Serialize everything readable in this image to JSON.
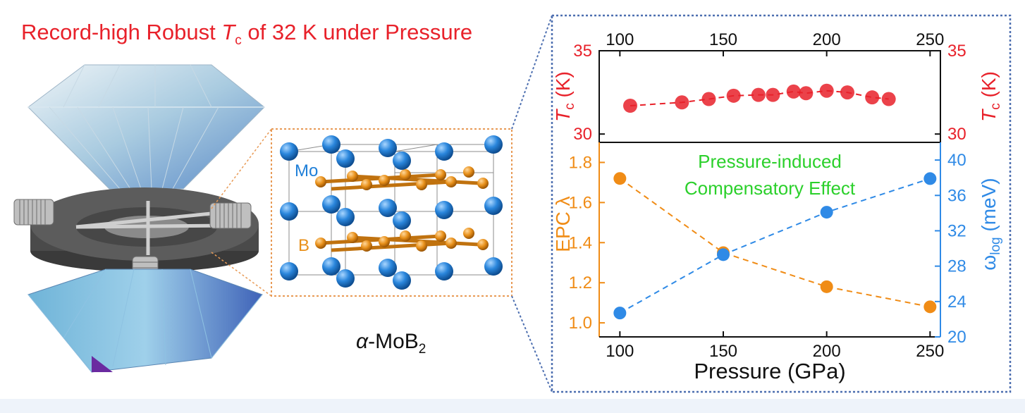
{
  "title": {
    "prefix": "Record-high Robust ",
    "T": "T",
    "sub": "c",
    "suffix": " of 32 K under Pressure",
    "color": "#e8212a"
  },
  "structure": {
    "name_greek": "α",
    "name_main": "-MoB",
    "name_sub": "2",
    "mo_label": "Mo",
    "b_label": "B",
    "mo_color": "#1f7fd8",
    "b_color": "#e8901a"
  },
  "chart_data": [
    {
      "type": "scatter",
      "xlabel": "",
      "ylabel": "Tc (K)",
      "ylabel_T": "T",
      "ylabel_sub": "c",
      "ylabel_unit": " (K)",
      "x_axis_position": "top",
      "xlim": [
        90,
        255
      ],
      "ylim": [
        29.5,
        35
      ],
      "xticks": [
        100,
        150,
        200,
        250
      ],
      "yticks": [
        30,
        35
      ],
      "color": "#e8212a",
      "series": [
        {
          "x": [
            105,
            130,
            143,
            155,
            167,
            174,
            184,
            190,
            200,
            210,
            222,
            230
          ],
          "y": [
            31.7,
            31.9,
            32.1,
            32.3,
            32.35,
            32.35,
            32.55,
            32.45,
            32.6,
            32.5,
            32.2,
            32.1
          ]
        }
      ]
    },
    {
      "type": "scatter",
      "xlabel": "Pressure (GPa)",
      "ylabel_left": "EPC λ",
      "ylabel_right": "ωlog (meV)",
      "ylabel_right_main": "ω",
      "ylabel_right_sub": "log",
      "ylabel_right_unit": " (meV)",
      "annotation": [
        "Pressure-induced",
        "Compensatory Effect"
      ],
      "annotation_color": "#2bd02b",
      "xlim": [
        90,
        255
      ],
      "ylim_left": [
        0.93,
        1.9
      ],
      "ylim_right": [
        20,
        42
      ],
      "xticks": [
        100,
        150,
        200,
        250
      ],
      "yticks_left": [
        1.0,
        1.2,
        1.4,
        1.6,
        1.8
      ],
      "yticks_right": [
        20,
        24,
        28,
        32,
        36,
        40
      ],
      "series": [
        {
          "name": "EPC λ",
          "axis": "left",
          "color": "#f08c16",
          "x": [
            100,
            150,
            200,
            250
          ],
          "y": [
            1.72,
            1.35,
            1.18,
            1.08
          ]
        },
        {
          "name": "ωlog",
          "axis": "right",
          "color": "#2f8ae6",
          "x": [
            100,
            150,
            200,
            250
          ],
          "y": [
            22.7,
            29.3,
            34.1,
            37.9
          ]
        }
      ]
    }
  ]
}
